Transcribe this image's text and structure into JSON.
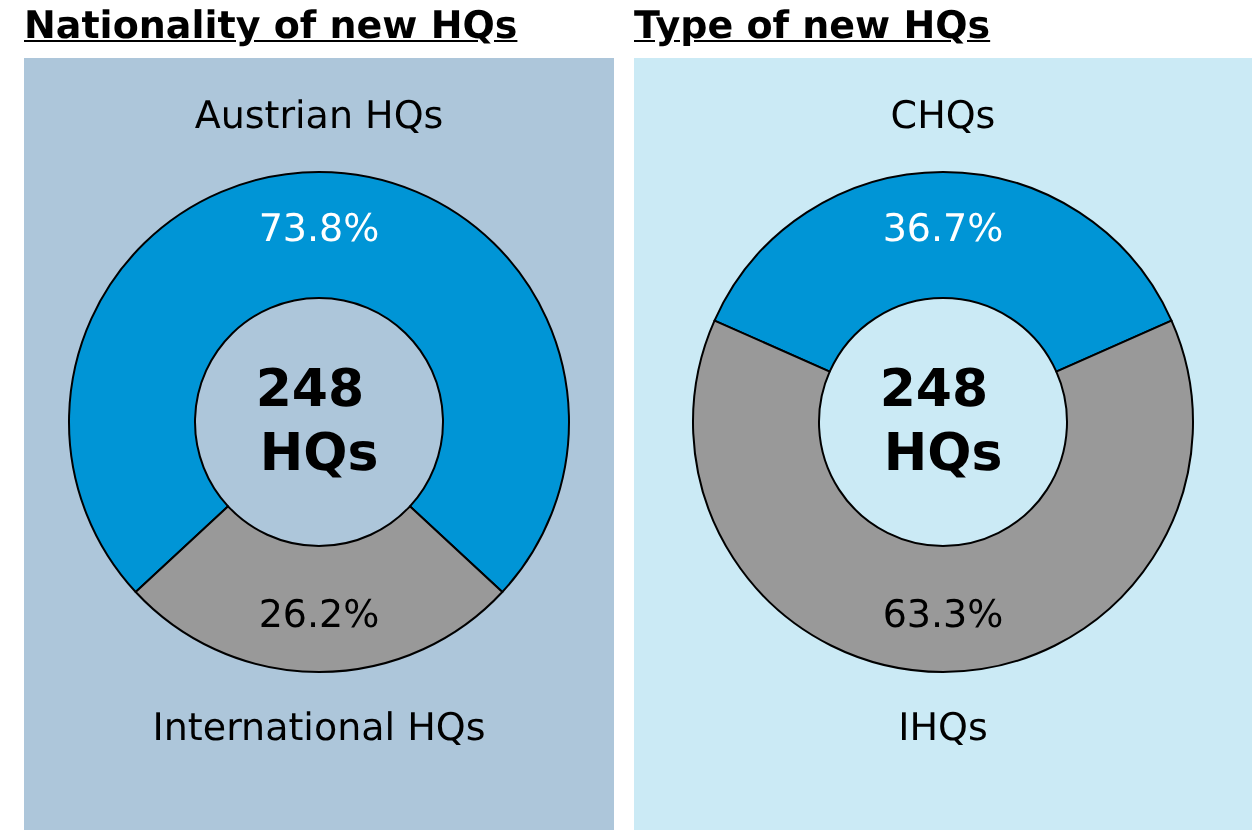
{
  "chart_data": [
    {
      "type": "donut",
      "title": "Nationality of new HQs",
      "categories": [
        "Austrian HQs",
        "International HQs"
      ],
      "values": [
        73.8,
        26.2
      ],
      "colors": [
        "#0095d6",
        "#999999"
      ],
      "value_labels": [
        "73.8%",
        "26.2%"
      ],
      "annotations": [
        "248 HQs"
      ]
    },
    {
      "type": "donut",
      "title": "Type of new HQs",
      "categories": [
        "CHQs",
        "IHQs"
      ],
      "values": [
        36.7,
        63.3
      ],
      "colors": [
        "#0095d6",
        "#999999"
      ],
      "value_labels": [
        "36.7%",
        "63.3%"
      ],
      "annotations": [
        "248 HQs"
      ]
    }
  ]
}
